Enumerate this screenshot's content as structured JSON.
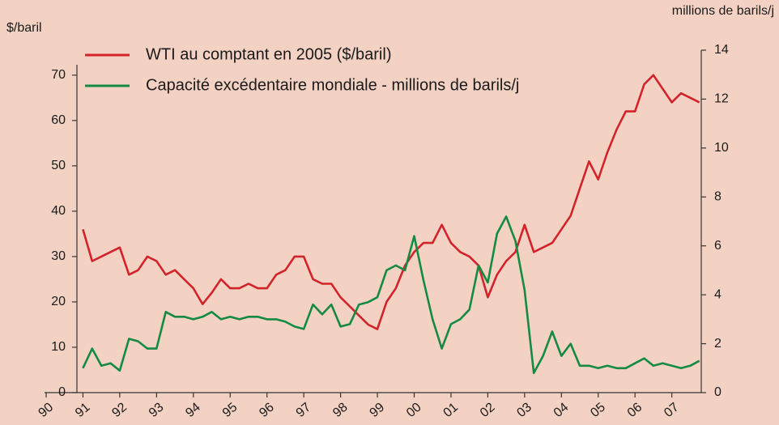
{
  "chart_data": {
    "type": "line",
    "y_label": "$/baril",
    "y2_label": "millions de barils/j",
    "xlim": [
      1990,
      2007.8
    ],
    "xticks": [
      {
        "value": 1990,
        "label": "90"
      },
      {
        "value": 1991,
        "label": "91"
      },
      {
        "value": 1992,
        "label": "92"
      },
      {
        "value": 1993,
        "label": "93"
      },
      {
        "value": 1994,
        "label": "94"
      },
      {
        "value": 1995,
        "label": "95"
      },
      {
        "value": 1996,
        "label": "96"
      },
      {
        "value": 1997,
        "label": "97"
      },
      {
        "value": 1998,
        "label": "98"
      },
      {
        "value": 1999,
        "label": "99"
      },
      {
        "value": 2000,
        "label": "00"
      },
      {
        "value": 2001,
        "label": "01"
      },
      {
        "value": 2002,
        "label": "02"
      },
      {
        "value": 2003,
        "label": "03"
      },
      {
        "value": 2004,
        "label": "04"
      },
      {
        "value": 2005,
        "label": "05"
      },
      {
        "value": 2006,
        "label": "06"
      },
      {
        "value": 2007,
        "label": "07"
      }
    ],
    "ylim": [
      0,
      75.5
    ],
    "yticks": [
      0,
      10,
      20,
      30,
      40,
      50,
      60,
      70
    ],
    "y2lim": [
      0,
      14
    ],
    "y2ticks": [
      0,
      2,
      4,
      6,
      8,
      10,
      12,
      14
    ],
    "x": [
      1991,
      1991.25,
      1991.5,
      1991.75,
      1992,
      1992.25,
      1992.5,
      1992.75,
      1993,
      1993.25,
      1993.5,
      1993.75,
      1994,
      1994.25,
      1994.5,
      1994.75,
      1995,
      1995.25,
      1995.5,
      1995.75,
      1996,
      1996.25,
      1996.5,
      1996.75,
      1997,
      1997.25,
      1997.5,
      1997.75,
      1998,
      1998.25,
      1998.5,
      1998.75,
      1999,
      1999.25,
      1999.5,
      1999.75,
      2000,
      2000.25,
      2000.5,
      2000.75,
      2001,
      2001.25,
      2001.5,
      2001.75,
      2002,
      2002.25,
      2002.5,
      2002.75,
      2003,
      2003.25,
      2003.5,
      2003.75,
      2004,
      2004.25,
      2004.5,
      2004.75,
      2005,
      2005.25,
      2005.5,
      2005.75,
      2006,
      2006.25,
      2006.5,
      2006.75,
      2007,
      2007.25,
      2007.5,
      2007.75
    ],
    "series": [
      {
        "name": "WTI au comptant en 2005 ($/baril)",
        "color": "#d2232a",
        "values": [
          36,
          29,
          30,
          31,
          32,
          26,
          27,
          30,
          29,
          26,
          27,
          25,
          23,
          19.5,
          22,
          25,
          23,
          23,
          24,
          23,
          23,
          26,
          27,
          30,
          30,
          25,
          24,
          24,
          21,
          19,
          17,
          15,
          14,
          20,
          23,
          28,
          31,
          33,
          33,
          37,
          33,
          31,
          30,
          28,
          21,
          26,
          29,
          31,
          37,
          31,
          32,
          33,
          36,
          39,
          45,
          51,
          47,
          53,
          58,
          62,
          62,
          68,
          70,
          67,
          64,
          66,
          65,
          64
        ]
      },
      {
        "name": "Capacité excédentaire mondiale - millions de barils/j",
        "color": "#158a42",
        "axis": "y2",
        "values": [
          1.0,
          1.8,
          1.1,
          1.2,
          0.9,
          2.2,
          2.1,
          1.8,
          1.8,
          3.3,
          3.1,
          3.1,
          3.0,
          3.1,
          3.3,
          3.0,
          3.1,
          3.0,
          3.1,
          3.1,
          3.0,
          3.0,
          2.9,
          2.7,
          2.6,
          3.6,
          3.2,
          3.6,
          2.7,
          2.8,
          3.6,
          3.7,
          3.9,
          5.0,
          5.2,
          5.0,
          6.4,
          4.6,
          3.0,
          1.8,
          2.8,
          3.0,
          3.4,
          5.2,
          4.5,
          6.5,
          7.2,
          6.2,
          4.2,
          0.8,
          1.5,
          2.5,
          1.5,
          2.0,
          1.1,
          1.1,
          1.0,
          1.1,
          1.0,
          1.0,
          1.2,
          1.4,
          1.1,
          1.2,
          1.1,
          1.0,
          1.1,
          1.3
        ]
      }
    ]
  }
}
